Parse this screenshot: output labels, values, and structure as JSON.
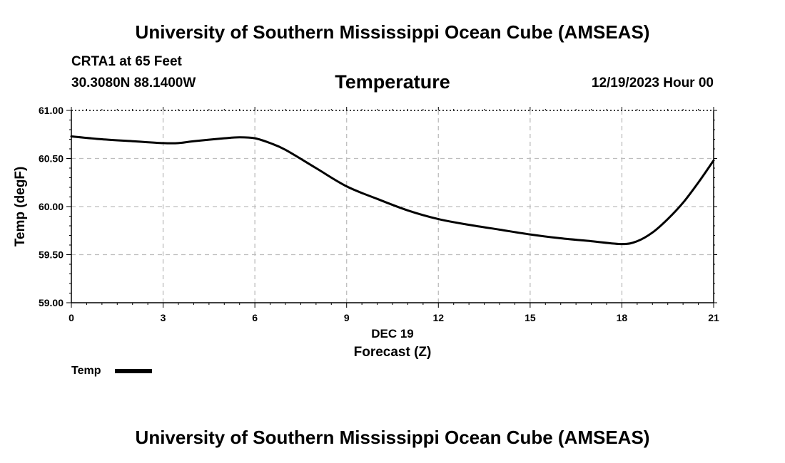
{
  "header": {
    "main_title": "University of Southern Mississippi Ocean Cube (AMSEAS)",
    "station": "CRTA1 at 65 Feet",
    "coords": "30.3080N  88.1400W",
    "variable_title": "Temperature",
    "datetime": "12/19/2023 Hour 00"
  },
  "footer": {
    "title": "University of Southern Mississippi Ocean Cube (AMSEAS)"
  },
  "chart_data": {
    "type": "line",
    "title": "Temperature",
    "xlabel": "Forecast (Z)",
    "xsublabel": "DEC 19",
    "ylabel": "Temp (degF)",
    "xlim": [
      0,
      21
    ],
    "ylim": [
      59.0,
      61.0
    ],
    "xticks": [
      0,
      3,
      6,
      9,
      12,
      15,
      18,
      21
    ],
    "xtick_labels": [
      "0",
      "3",
      "6",
      "9",
      "12",
      "15",
      "18",
      "21"
    ],
    "yticks": [
      59.0,
      59.5,
      60.0,
      60.5,
      61.0
    ],
    "ytick_labels": [
      "59.00",
      "59.50",
      "60.00",
      "60.50",
      "61.00"
    ],
    "grid": true,
    "legend": {
      "position": "bottom-left",
      "entries": [
        "Temp"
      ]
    },
    "series": [
      {
        "name": "Temp",
        "color": "#000000",
        "x": [
          0,
          1,
          2,
          3,
          3.5,
          4,
          5,
          5.5,
          6,
          6.5,
          7,
          8,
          9,
          10,
          11,
          12,
          13,
          14,
          15,
          16,
          17,
          18,
          18.5,
          19,
          19.5,
          20,
          20.5,
          21
        ],
        "values": [
          60.73,
          60.7,
          60.68,
          60.66,
          60.66,
          60.68,
          60.71,
          60.72,
          60.71,
          60.66,
          60.59,
          60.4,
          60.21,
          60.08,
          59.96,
          59.87,
          59.81,
          59.76,
          59.71,
          59.67,
          59.64,
          59.61,
          59.64,
          59.73,
          59.87,
          60.04,
          60.25,
          60.48
        ]
      }
    ]
  }
}
